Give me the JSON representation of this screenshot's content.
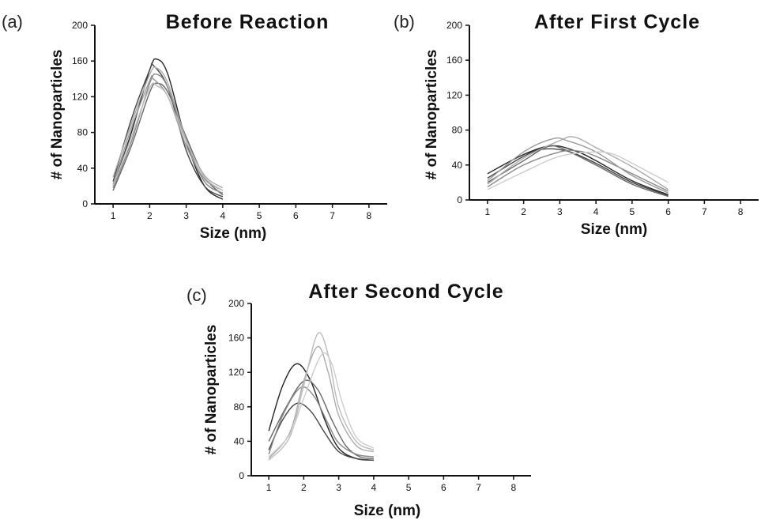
{
  "chart_data": [
    {
      "type": "line",
      "panel_label": "(a)",
      "title": "Before Reaction",
      "xlabel": "Size (nm)",
      "ylabel": "# of Nanoparticles",
      "xlim": [
        0.5,
        8.5
      ],
      "ylim": [
        0,
        200
      ],
      "x_ticks": [
        1,
        2,
        3,
        4,
        5,
        6,
        7,
        8
      ],
      "y_ticks": [
        0,
        40,
        80,
        120,
        160,
        200
      ],
      "grid": false,
      "series": [
        {
          "color": "#222222",
          "x": [
            1.0,
            1.5,
            2.0,
            2.2,
            2.5,
            3.0,
            3.5,
            4.0
          ],
          "y": [
            20,
            80,
            150,
            162,
            145,
            70,
            20,
            5
          ]
        },
        {
          "color": "#444444",
          "x": [
            1.0,
            1.5,
            2.0,
            2.1,
            2.5,
            3.0,
            3.5,
            4.0
          ],
          "y": [
            25,
            95,
            150,
            155,
            130,
            60,
            20,
            8
          ]
        },
        {
          "color": "#666666",
          "x": [
            1.0,
            1.5,
            2.0,
            2.2,
            2.5,
            3.0,
            3.5,
            4.0
          ],
          "y": [
            15,
            65,
            125,
            135,
            125,
            75,
            30,
            10
          ]
        },
        {
          "color": "#888888",
          "x": [
            1.0,
            1.5,
            2.0,
            2.2,
            2.5,
            3.0,
            3.5,
            4.0
          ],
          "y": [
            18,
            70,
            135,
            145,
            130,
            70,
            25,
            12
          ]
        },
        {
          "color": "#999999",
          "x": [
            1.0,
            1.5,
            2.0,
            2.1,
            2.5,
            3.0,
            3.5,
            4.0
          ],
          "y": [
            22,
            85,
            138,
            140,
            120,
            65,
            28,
            15
          ]
        },
        {
          "color": "#aaaaaa",
          "x": [
            1.0,
            1.5,
            2.0,
            2.2,
            2.5,
            3.0,
            3.5,
            4.0
          ],
          "y": [
            30,
            90,
            145,
            152,
            135,
            72,
            32,
            18
          ]
        },
        {
          "color": "#bbbbbb",
          "x": [
            1.0,
            1.5,
            2.0,
            2.2,
            2.5,
            3.0,
            3.5,
            4.0
          ],
          "y": [
            20,
            75,
            130,
            132,
            120,
            70,
            30,
            15
          ]
        }
      ]
    },
    {
      "type": "line",
      "panel_label": "(b)",
      "title": "After First Cycle",
      "xlabel": "Size (nm)",
      "ylabel": "# of Nanoparticles",
      "xlim": [
        0.5,
        8.5
      ],
      "ylim": [
        0,
        200
      ],
      "x_ticks": [
        1,
        2,
        3,
        4,
        5,
        6,
        7,
        8
      ],
      "y_ticks": [
        0,
        40,
        80,
        120,
        160,
        200
      ],
      "grid": false,
      "series": [
        {
          "color": "#222222",
          "x": [
            1,
            2,
            2.8,
            3.5,
            4,
            5,
            6
          ],
          "y": [
            30,
            52,
            62,
            55,
            45,
            22,
            6
          ]
        },
        {
          "color": "#444444",
          "x": [
            1,
            2,
            2.5,
            3.2,
            4,
            5,
            6
          ],
          "y": [
            25,
            50,
            58,
            56,
            42,
            20,
            5
          ]
        },
        {
          "color": "#666666",
          "x": [
            1,
            2,
            2.6,
            3.0,
            4,
            5,
            6
          ],
          "y": [
            20,
            45,
            60,
            60,
            40,
            18,
            4
          ]
        },
        {
          "color": "#888888",
          "x": [
            1,
            2,
            3.0,
            3.5,
            4,
            5,
            6
          ],
          "y": [
            15,
            40,
            55,
            56,
            50,
            30,
            10
          ]
        },
        {
          "color": "#999999",
          "x": [
            1,
            2,
            2.8,
            3.2,
            4,
            5,
            6
          ],
          "y": [
            22,
            55,
            70,
            68,
            55,
            28,
            8
          ]
        },
        {
          "color": "#aaaaaa",
          "x": [
            1,
            2,
            3.0,
            3.4,
            4,
            5,
            6
          ],
          "y": [
            18,
            48,
            68,
            72,
            60,
            38,
            12
          ]
        },
        {
          "color": "#cccccc",
          "x": [
            1,
            2,
            3.0,
            4.0,
            4.5,
            5,
            6
          ],
          "y": [
            12,
            32,
            50,
            55,
            52,
            42,
            20
          ]
        }
      ]
    },
    {
      "type": "line",
      "panel_label": "(c)",
      "title": "After Second Cycle",
      "xlabel": "Size (nm)",
      "ylabel": "# of Nanoparticles",
      "xlim": [
        0.5,
        8.5
      ],
      "ylim": [
        0,
        200
      ],
      "x_ticks": [
        1,
        2,
        3,
        4,
        5,
        6,
        7,
        8
      ],
      "y_ticks": [
        0,
        40,
        80,
        120,
        160,
        200
      ],
      "grid": false,
      "series": [
        {
          "color": "#222222",
          "x": [
            1.0,
            1.4,
            1.8,
            2.2,
            2.6,
            3.0,
            3.5,
            4.0
          ],
          "y": [
            52,
            105,
            130,
            110,
            65,
            32,
            20,
            18
          ]
        },
        {
          "color": "#444444",
          "x": [
            1.0,
            1.4,
            1.8,
            2.2,
            2.6,
            3.0,
            3.5,
            4.0
          ],
          "y": [
            30,
            65,
            84,
            75,
            50,
            28,
            20,
            18
          ]
        },
        {
          "color": "#666666",
          "x": [
            1.0,
            1.5,
            2.0,
            2.4,
            2.8,
            3.2,
            3.6,
            4.0
          ],
          "y": [
            40,
            80,
            110,
            100,
            65,
            35,
            22,
            20
          ]
        },
        {
          "color": "#888888",
          "x": [
            1.0,
            1.4,
            1.9,
            2.3,
            2.7,
            3.0,
            3.5,
            4.0
          ],
          "y": [
            25,
            70,
            102,
            92,
            60,
            38,
            25,
            22
          ]
        },
        {
          "color": "#aaaaaa",
          "x": [
            1.0,
            1.6,
            2.0,
            2.4,
            2.7,
            3.0,
            3.5,
            4.0
          ],
          "y": [
            20,
            50,
            110,
            150,
            120,
            70,
            35,
            28
          ]
        },
        {
          "color": "#bbbbbb",
          "x": [
            1.0,
            1.6,
            2.0,
            2.4,
            2.7,
            3.0,
            3.5,
            4.0
          ],
          "y": [
            18,
            45,
            105,
            165,
            140,
            80,
            40,
            30
          ]
        },
        {
          "color": "#cccccc",
          "x": [
            1.0,
            1.6,
            2.0,
            2.5,
            2.8,
            3.1,
            3.5,
            4.0
          ],
          "y": [
            22,
            48,
            90,
            140,
            130,
            85,
            45,
            32
          ]
        }
      ]
    }
  ]
}
